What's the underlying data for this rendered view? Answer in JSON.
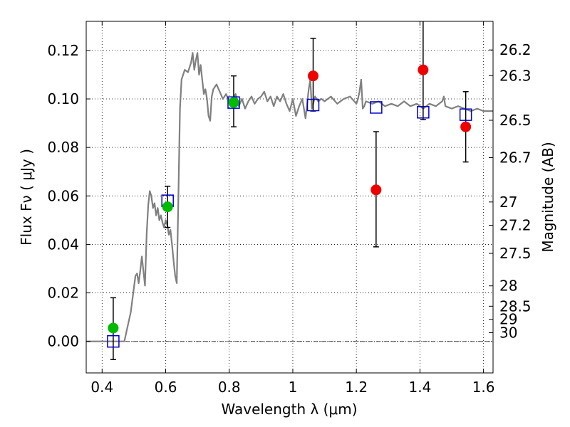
{
  "chart_data": {
    "type": "scatter",
    "xlabel": "Wavelength  λ (μm)",
    "ylabel_left": "Flux  Fν  ( μJy )",
    "ylabel_right": "Magnitude (AB)",
    "xlim": [
      0.35,
      1.63
    ],
    "ylim": [
      -0.013,
      0.132
    ],
    "grid": true,
    "x_ticks": [
      0.4,
      0.6,
      0.8,
      1.0,
      1.2,
      1.4,
      1.6
    ],
    "x_tick_labels": [
      "0.4",
      "0.6",
      "0.8",
      "1",
      "1.2",
      "1.4",
      "1.6"
    ],
    "y_ticks": [
      0.0,
      0.02,
      0.04,
      0.06,
      0.08,
      0.1,
      0.12
    ],
    "y_tick_labels": [
      "0.00",
      "0.02",
      "0.04",
      "0.06",
      "0.08",
      "0.10",
      "0.12"
    ],
    "right_ticks": [
      {
        "label": "26.2",
        "flux": 0.1202
      },
      {
        "label": "26.3",
        "flux": 0.1096
      },
      {
        "label": "26.5",
        "flux": 0.0912
      },
      {
        "label": "26.7",
        "flux": 0.0758
      },
      {
        "label": "27",
        "flux": 0.0575
      },
      {
        "label": "27.2",
        "flux": 0.0479
      },
      {
        "label": "27.5",
        "flux": 0.0363
      },
      {
        "label": "28",
        "flux": 0.0229
      },
      {
        "label": "28.5",
        "flux": 0.0145
      },
      {
        "label": "29",
        "flux": 0.0091
      },
      {
        "label": "30",
        "flux": 0.0036
      }
    ],
    "colors": {
      "model": "#808080",
      "green": "#00bb00",
      "red": "#ee0000",
      "squares": "#0000cc",
      "errorbar": "#000000",
      "zero_line": "#444444"
    },
    "model_spectrum": [
      [
        0.35,
        0.0
      ],
      [
        0.47,
        0.0
      ],
      [
        0.49,
        0.012
      ],
      [
        0.5,
        0.022
      ],
      [
        0.505,
        0.027
      ],
      [
        0.51,
        0.028
      ],
      [
        0.515,
        0.024
      ],
      [
        0.52,
        0.029
      ],
      [
        0.525,
        0.035
      ],
      [
        0.53,
        0.029
      ],
      [
        0.535,
        0.023
      ],
      [
        0.54,
        0.044
      ],
      [
        0.545,
        0.056
      ],
      [
        0.55,
        0.062
      ],
      [
        0.555,
        0.06
      ],
      [
        0.56,
        0.055
      ],
      [
        0.565,
        0.057
      ],
      [
        0.57,
        0.052
      ],
      [
        0.575,
        0.055
      ],
      [
        0.58,
        0.05
      ],
      [
        0.585,
        0.052
      ],
      [
        0.59,
        0.049
      ],
      [
        0.595,
        0.047
      ],
      [
        0.6,
        0.05
      ],
      [
        0.605,
        0.048
      ],
      [
        0.61,
        0.044
      ],
      [
        0.615,
        0.046
      ],
      [
        0.62,
        0.04
      ],
      [
        0.625,
        0.033
      ],
      [
        0.63,
        0.027
      ],
      [
        0.635,
        0.024
      ],
      [
        0.64,
        0.06
      ],
      [
        0.645,
        0.096
      ],
      [
        0.65,
        0.108
      ],
      [
        0.66,
        0.112
      ],
      [
        0.67,
        0.111
      ],
      [
        0.68,
        0.115
      ],
      [
        0.685,
        0.119
      ],
      [
        0.69,
        0.112
      ],
      [
        0.695,
        0.116
      ],
      [
        0.7,
        0.119
      ],
      [
        0.705,
        0.11
      ],
      [
        0.71,
        0.114
      ],
      [
        0.715,
        0.108
      ],
      [
        0.72,
        0.102
      ],
      [
        0.725,
        0.104
      ],
      [
        0.73,
        0.1
      ],
      [
        0.735,
        0.093
      ],
      [
        0.74,
        0.091
      ],
      [
        0.745,
        0.101
      ],
      [
        0.75,
        0.104
      ],
      [
        0.76,
        0.106
      ],
      [
        0.77,
        0.103
      ],
      [
        0.78,
        0.1
      ],
      [
        0.79,
        0.102
      ],
      [
        0.8,
        0.099
      ],
      [
        0.81,
        0.1
      ],
      [
        0.82,
        0.102
      ],
      [
        0.83,
        0.097
      ],
      [
        0.84,
        0.1
      ],
      [
        0.85,
        0.096
      ],
      [
        0.86,
        0.099
      ],
      [
        0.87,
        0.101
      ],
      [
        0.88,
        0.098
      ],
      [
        0.89,
        0.1
      ],
      [
        0.9,
        0.101
      ],
      [
        0.91,
        0.103
      ],
      [
        0.92,
        0.099
      ],
      [
        0.93,
        0.101
      ],
      [
        0.94,
        0.097
      ],
      [
        0.95,
        0.101
      ],
      [
        0.96,
        0.099
      ],
      [
        0.97,
        0.102
      ],
      [
        0.98,
        0.098
      ],
      [
        0.99,
        0.095
      ],
      [
        1.0,
        0.1
      ],
      [
        1.01,
        0.093
      ],
      [
        1.02,
        0.097
      ],
      [
        1.03,
        0.1
      ],
      [
        1.04,
        0.092
      ],
      [
        1.05,
        0.104
      ],
      [
        1.055,
        0.108
      ],
      [
        1.06,
        0.096
      ],
      [
        1.07,
        0.101
      ],
      [
        1.08,
        0.099
      ],
      [
        1.09,
        0.1
      ],
      [
        1.1,
        0.099
      ],
      [
        1.12,
        0.101
      ],
      [
        1.14,
        0.098
      ],
      [
        1.16,
        0.1
      ],
      [
        1.18,
        0.101
      ],
      [
        1.2,
        0.098
      ],
      [
        1.205,
        0.1
      ],
      [
        1.21,
        0.103
      ],
      [
        1.215,
        0.108
      ],
      [
        1.22,
        0.096
      ],
      [
        1.225,
        0.097
      ],
      [
        1.23,
        0.099
      ],
      [
        1.25,
        0.098
      ],
      [
        1.27,
        0.099
      ],
      [
        1.29,
        0.097
      ],
      [
        1.31,
        0.098
      ],
      [
        1.33,
        0.097
      ],
      [
        1.35,
        0.099
      ],
      [
        1.37,
        0.097
      ],
      [
        1.39,
        0.098
      ],
      [
        1.41,
        0.096
      ],
      [
        1.43,
        0.098
      ],
      [
        1.45,
        0.097
      ],
      [
        1.47,
        0.099
      ],
      [
        1.475,
        0.101
      ],
      [
        1.48,
        0.097
      ],
      [
        1.5,
        0.096
      ],
      [
        1.52,
        0.097
      ],
      [
        1.54,
        0.096
      ],
      [
        1.56,
        0.095
      ],
      [
        1.58,
        0.096
      ],
      [
        1.6,
        0.095
      ],
      [
        1.63,
        0.095
      ]
    ],
    "green_points": [
      {
        "x": 0.435,
        "y": 0.0055
      },
      {
        "x": 0.606,
        "y": 0.0555
      },
      {
        "x": 0.814,
        "y": 0.0985
      }
    ],
    "red_points": [
      {
        "x": 1.064,
        "y": 0.1095
      },
      {
        "x": 1.262,
        "y": 0.0625
      },
      {
        "x": 1.41,
        "y": 0.112
      },
      {
        "x": 1.544,
        "y": 0.0885
      }
    ],
    "error_bars": [
      {
        "x": 0.435,
        "y_low": -0.0075,
        "y_high": 0.018
      },
      {
        "x": 0.606,
        "y_low": 0.047,
        "y_high": 0.064
      },
      {
        "x": 0.814,
        "y_low": 0.0885,
        "y_high": 0.1095
      },
      {
        "x": 1.064,
        "y_low": 0.095,
        "y_high": 0.125
      },
      {
        "x": 1.262,
        "y_low": 0.039,
        "y_high": 0.0865
      },
      {
        "x": 1.41,
        "y_low": 0.0915,
        "y_high": 0.134
      },
      {
        "x": 1.544,
        "y_low": 0.074,
        "y_high": 0.103
      }
    ],
    "square_points": [
      {
        "x": 0.435,
        "y": 0.0
      },
      {
        "x": 0.606,
        "y": 0.058
      },
      {
        "x": 0.814,
        "y": 0.0985
      },
      {
        "x": 1.064,
        "y": 0.0975
      },
      {
        "x": 1.262,
        "y": 0.0965
      },
      {
        "x": 1.41,
        "y": 0.0945
      },
      {
        "x": 1.544,
        "y": 0.0935
      }
    ]
  }
}
